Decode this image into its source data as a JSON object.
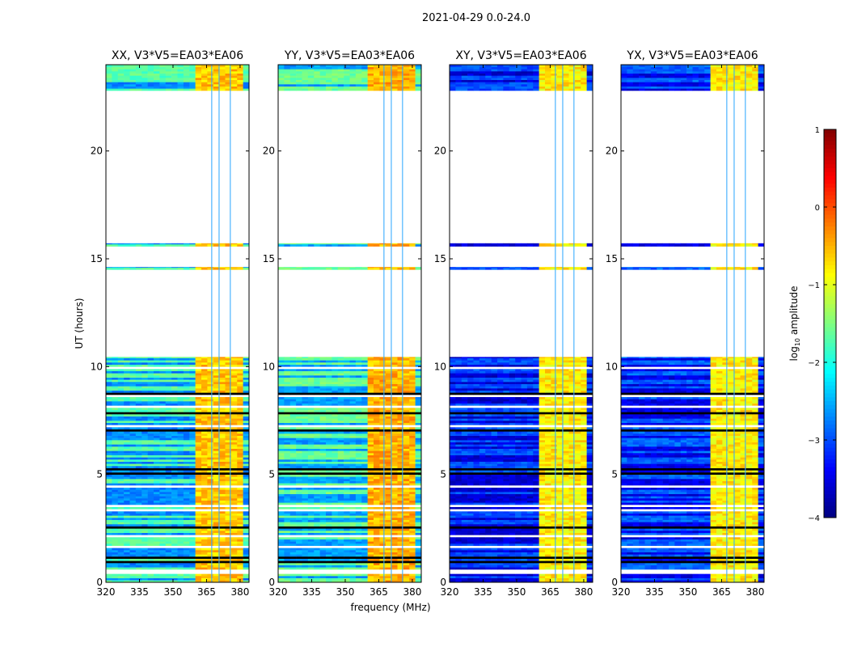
{
  "chart_data": {
    "type": "heatmap",
    "suptitle": "2021-04-29 0.0-24.0",
    "xlabel": "frequency (MHz)",
    "ylabel": "UT (hours)",
    "xlim": [
      320,
      384
    ],
    "ylim": [
      0,
      24
    ],
    "xticks": [
      "320",
      "335",
      "350",
      "365",
      "380"
    ],
    "xtick_values": [
      320,
      335,
      350,
      365,
      380
    ],
    "yticks": [
      "0",
      "5",
      "10",
      "15",
      "20"
    ],
    "ytick_values": [
      0,
      5,
      10,
      15,
      20
    ],
    "colorbar": {
      "label_prefix": "log",
      "label_sub": "10",
      "label_suffix": " amplitude",
      "colormap": "jet",
      "range": [
        -4,
        1
      ],
      "ticks": [
        "1",
        "0",
        "−1",
        "−2",
        "−3",
        "−4"
      ],
      "tick_values": [
        1,
        0,
        -1,
        -2,
        -3,
        -4
      ]
    },
    "time_coverage_hours": [
      [
        0,
        10.45
      ],
      [
        14.5,
        14.62
      ],
      [
        15.58,
        15.72
      ],
      [
        22.8,
        24
      ]
    ],
    "blank_rows_hours": [
      0.45,
      1.6,
      2.1,
      3.3,
      3.5,
      4.4,
      5.0,
      7.2,
      8.1,
      8.6,
      9.9
    ],
    "dark_rows_hours": [
      0.9,
      1.1,
      2.5,
      4.95,
      5.2,
      7.0,
      7.8,
      8.7
    ],
    "band_mhz": [
      360.5,
      380
    ],
    "subband_edges_mhz": [
      367.3,
      370.6,
      375.6
    ],
    "panels": [
      {
        "title": "XX, V3*V5=EA03*EA06",
        "off_band_level": -2.2,
        "band_level": -0.6
      },
      {
        "title": "YY, V3*V5=EA03*EA06",
        "off_band_level": -2.1,
        "band_level": -0.5
      },
      {
        "title": "XY, V3*V5=EA03*EA06",
        "off_band_level": -3.3,
        "band_level": -0.8
      },
      {
        "title": "YX, V3*V5=EA03*EA06",
        "off_band_level": -3.2,
        "band_level": -0.8
      }
    ]
  }
}
